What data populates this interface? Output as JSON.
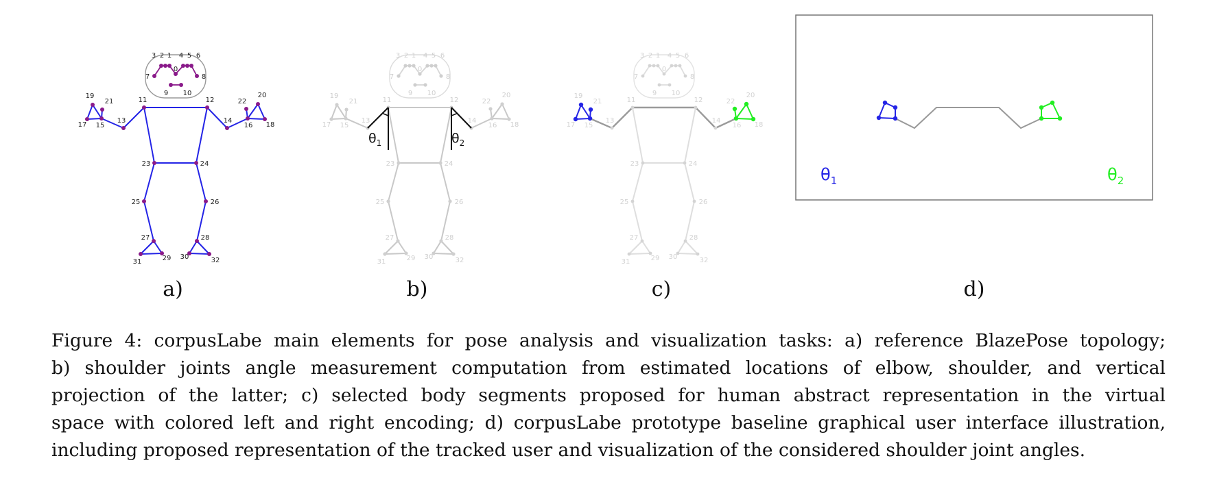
{
  "panels": {
    "a": {
      "label": "a)"
    },
    "b": {
      "label": "b)",
      "theta1": "θ",
      "theta1_sub": "1",
      "theta2": "θ",
      "theta2_sub": "2"
    },
    "c": {
      "label": "c)"
    },
    "d": {
      "label": "d)",
      "theta1": "θ",
      "theta1_sub": "1",
      "theta2": "θ",
      "theta2_sub": "2"
    }
  },
  "joint_labels": [
    "0",
    "1",
    "2",
    "3",
    "4",
    "5",
    "6",
    "7",
    "8",
    "9",
    "10",
    "11",
    "12",
    "13",
    "14",
    "15",
    "16",
    "17",
    "18",
    "19",
    "20",
    "21",
    "22",
    "23",
    "24",
    "25",
    "26",
    "27",
    "28",
    "29",
    "30",
    "31",
    "32"
  ],
  "colors": {
    "blue": "#2424e6",
    "green": "#22ee22",
    "joint": "#8a1a8a",
    "gray": "#c8c8c8",
    "dark": "#111111"
  },
  "caption": {
    "lines": [
      "Figure 4: corpusLabe main elements for pose analysis and visualization tasks: a) reference BlazePose topology;",
      "b) shoulder joints angle measurement computation from estimated locations of elbow, shoulder, and vertical",
      "projection of the latter; c) selected body segments proposed for human abstract representation in the virtual",
      "space with colored left and right encoding; d) corpusLabe prototype baseline graphical user interface illustration,",
      "including proposed representation of the tracked user and visualization of the considered shoulder joint angles."
    ]
  }
}
